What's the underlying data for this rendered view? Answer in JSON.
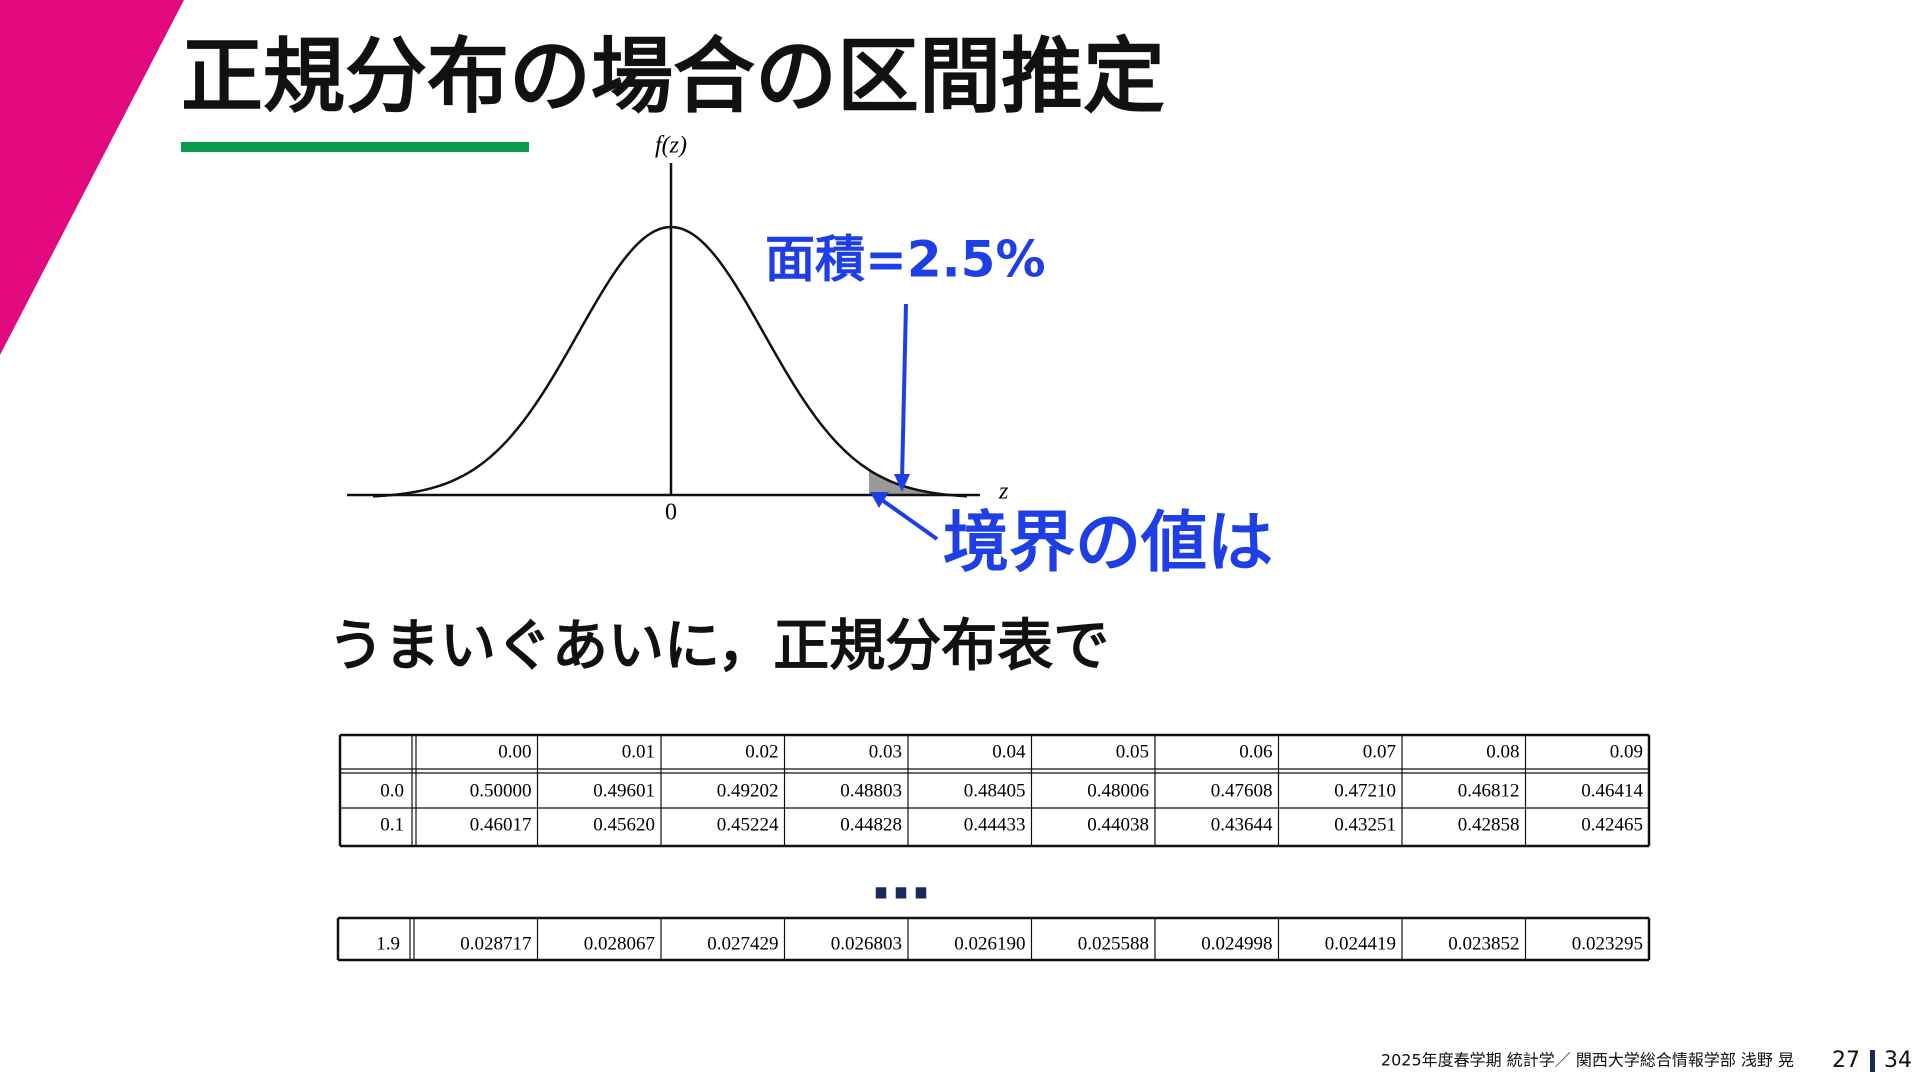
{
  "title": "正規分布の場合の区間推定",
  "figure": {
    "y_label": "f(z)",
    "origin_label": "0",
    "x_label": "z",
    "area_note": "面積=2.5%",
    "boundary_note": "境界の値は"
  },
  "subtitle": "うまいぐあいに，正規分布表で",
  "table": {
    "header": [
      "0.00",
      "0.01",
      "0.02",
      "0.03",
      "0.04",
      "0.05",
      "0.06",
      "0.07",
      "0.08",
      "0.09"
    ],
    "rows": [
      {
        "label": "0.0",
        "cells": [
          "0.50000",
          "0.49601",
          "0.49202",
          "0.48803",
          "0.48405",
          "0.48006",
          "0.47608",
          "0.47210",
          "0.46812",
          "0.46414"
        ]
      },
      {
        "label": "0.1",
        "cells": [
          "0.46017",
          "0.45620",
          "0.45224",
          "0.44828",
          "0.44433",
          "0.44038",
          "0.43644",
          "0.43251",
          "0.42858",
          "0.42465"
        ]
      }
    ]
  },
  "ellipsis": "…",
  "table2": {
    "rows": [
      {
        "label": "1.9",
        "cells": [
          "0.028717",
          "0.028067",
          "0.027429",
          "0.026803",
          "0.026190",
          "0.025588",
          "0.024998",
          "0.024419",
          "0.023852",
          "0.023295"
        ]
      }
    ]
  },
  "footer": {
    "course": "2025年度春学期 統計学／ 関西大学総合情報学部 浅野 晃",
    "page": "27",
    "total": "34"
  }
}
